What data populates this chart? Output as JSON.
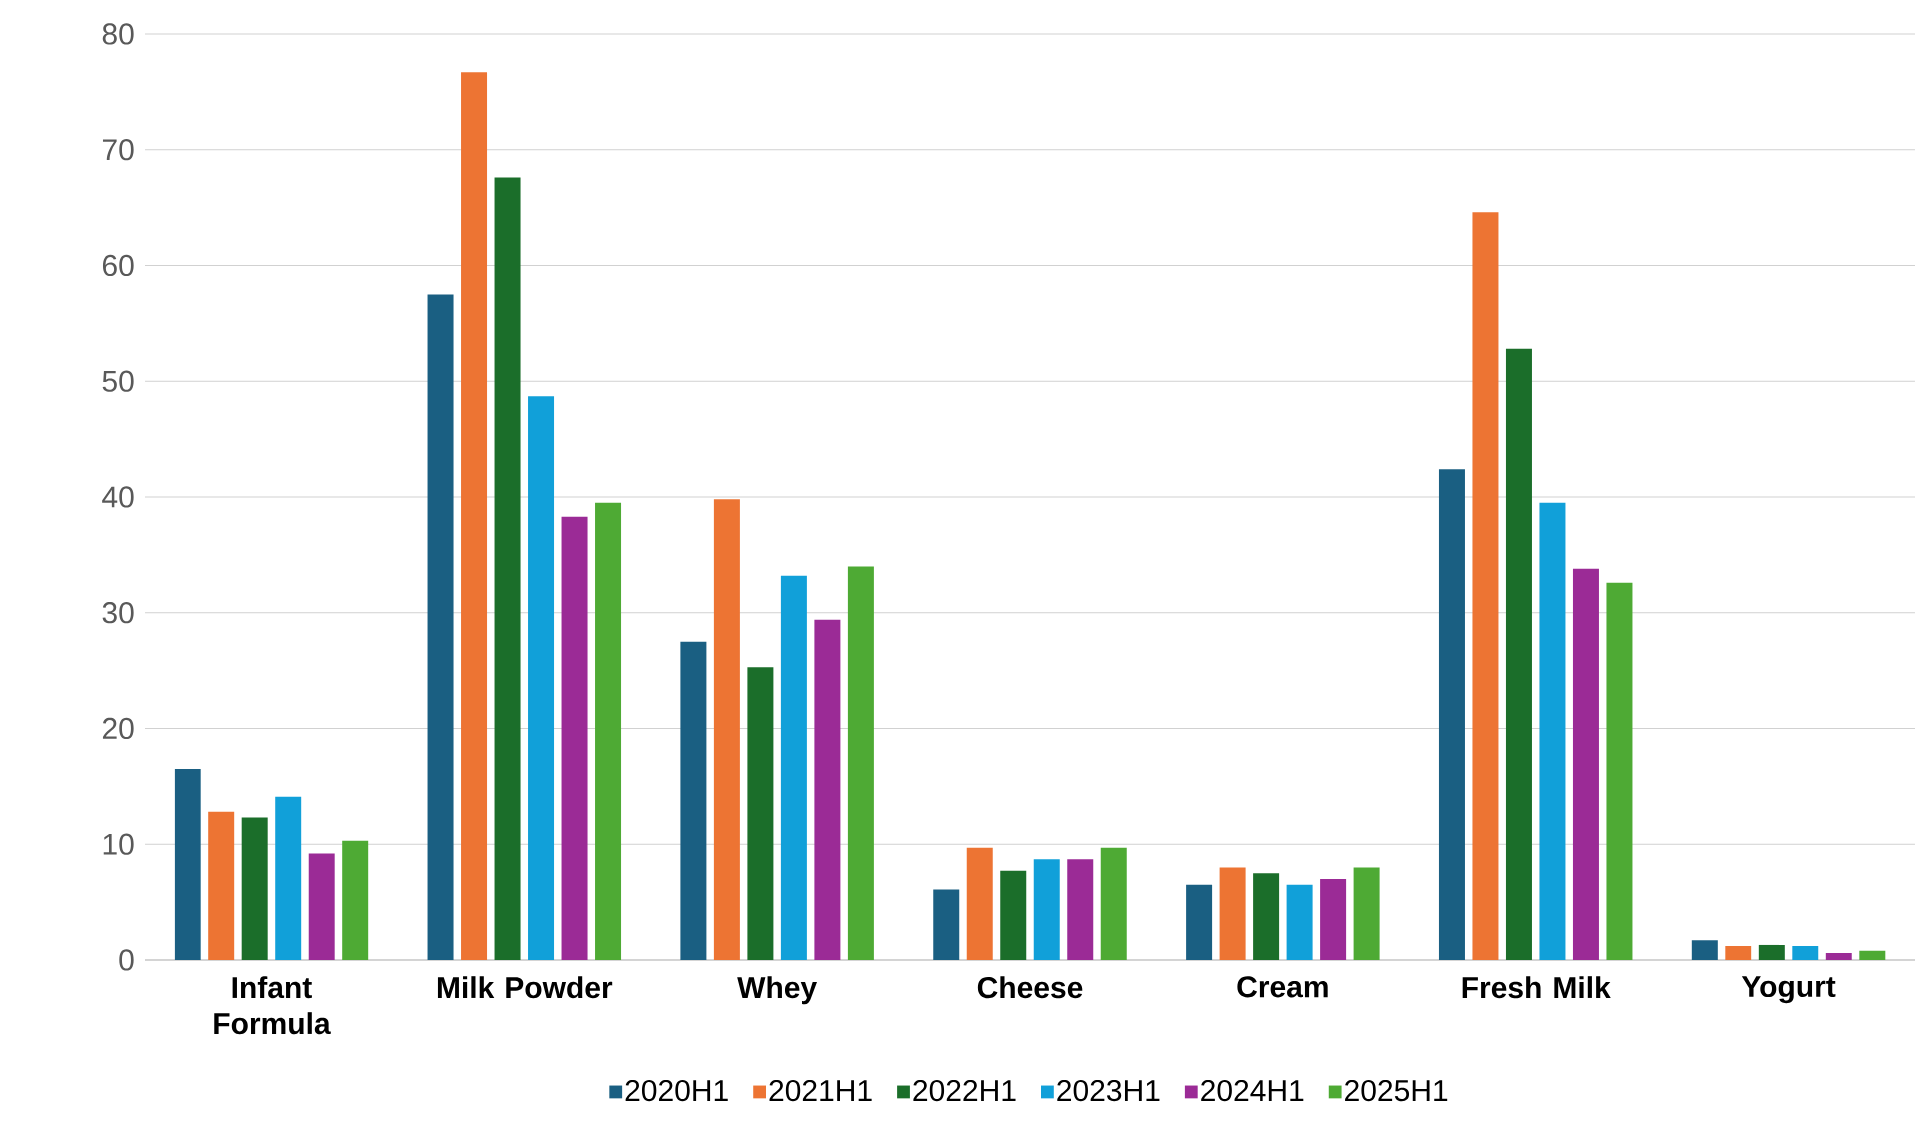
{
  "chart_data": {
    "type": "bar",
    "categories": [
      "Infant Formula",
      "Milk Powder",
      "Whey",
      "Cheese",
      "Cream",
      "Fresh Milk",
      "Yogurt"
    ],
    "series": [
      {
        "name": "2020H1",
        "color": "#1a5f82",
        "values": [
          16.5,
          57.5,
          27.5,
          6.1,
          6.5,
          42.4,
          1.7
        ]
      },
      {
        "name": "2021H1",
        "color": "#ed7433",
        "values": [
          12.8,
          76.7,
          39.8,
          9.7,
          8.0,
          64.6,
          1.2
        ]
      },
      {
        "name": "2022H1",
        "color": "#1b6e2a",
        "values": [
          12.3,
          67.6,
          25.3,
          7.7,
          7.5,
          52.8,
          1.3
        ]
      },
      {
        "name": "2023H1",
        "color": "#11a0d9",
        "values": [
          14.1,
          48.7,
          33.2,
          8.7,
          6.5,
          39.5,
          1.2
        ]
      },
      {
        "name": "2024H1",
        "color": "#9b2b96",
        "values": [
          9.2,
          38.3,
          29.4,
          8.7,
          7.0,
          33.8,
          0.6
        ]
      },
      {
        "name": "2025H1",
        "color": "#4eaa34",
        "values": [
          10.3,
          39.5,
          34.0,
          9.7,
          8.0,
          32.6,
          0.8
        ]
      }
    ],
    "ylim": [
      0,
      80
    ],
    "yticks": [
      0,
      10,
      20,
      30,
      40,
      50,
      60,
      70,
      80
    ],
    "grid": "y",
    "legend": "bottom"
  }
}
